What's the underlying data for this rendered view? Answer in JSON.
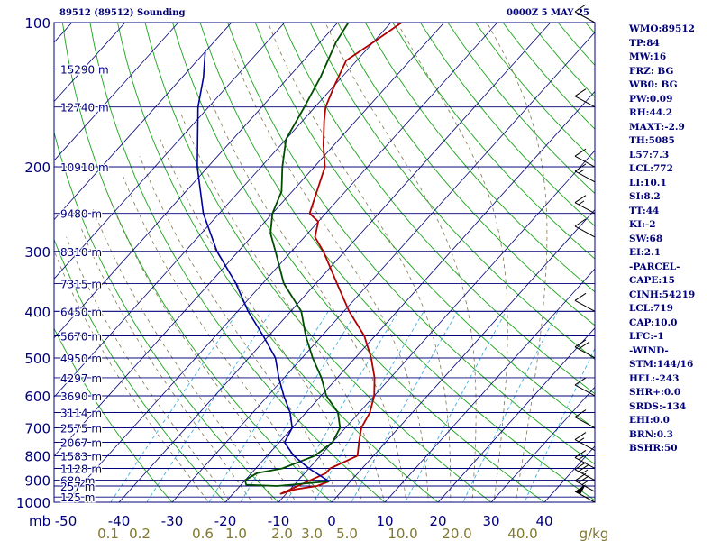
{
  "header": {
    "station": "89512 (89512) Sounding",
    "time": "0000Z  5 MAY 25"
  },
  "indices": [
    "WMO:89512",
    "TP:84",
    "MW:16",
    "FRZ: BG",
    "WB0: BG",
    "PW:0.09",
    "RH:44.2",
    "MAXT:-2.9",
    "TH:5085",
    "L57:7.3",
    "LCL:772",
    "LI:10.1",
    "SI:8.2",
    "TT:44",
    "KI:-2",
    "SW:68",
    "EI:2.1",
    "-PARCEL-",
    "CAPE:15",
    "CINH:54219",
    "LCL:719",
    "CAP:10.0",
    "LFC:-1",
    "-WIND-",
    "STM:144/16",
    "HEL:-243",
    "SHR+:0.0",
    "SRDS:-134",
    "EHI:0.0",
    "BRN:0.3",
    "BSHR:50"
  ],
  "colors": {
    "isobar": "#00007a",
    "isotherm": "#00007a",
    "dry_adiabat": "#1aa51a",
    "moist_adiabat": "#807850",
    "mixing_ratio": "#40b0e0",
    "temperature": "#b00000",
    "dewpoint": "#004d00",
    "parcel": "#00009e",
    "wind_barb": "#000000",
    "label": "#00007a",
    "bottom_label": "#807830"
  },
  "chart_data": {
    "type": "line",
    "title": "89512 (89512) Sounding",
    "subtitle": "0000Z  5 MAY 25",
    "xlabel": "",
    "ylabel": "mb",
    "pressure_levels": [
      100,
      200,
      300,
      400,
      500,
      600,
      700,
      800,
      900,
      1000
    ],
    "pressure_axis_unit": "mb",
    "temperature_ticks": [
      -50,
      -40,
      -30,
      -20,
      -10,
      0,
      10,
      20,
      30,
      40
    ],
    "mixing_ratio_ticks": [
      "0.1",
      "0.2",
      "0.6",
      "1.0",
      "2.0",
      "3.0",
      "5.0",
      "10.0",
      "20.0",
      "40.0"
    ],
    "mixing_ratio_unit": "g/kg",
    "height_labels": [
      {
        "p": 125,
        "label": "15290 m"
      },
      {
        "p": 150,
        "label": "12740 m"
      },
      {
        "p": 200,
        "label": "10910 m"
      },
      {
        "p": 250,
        "label": "9480 m"
      },
      {
        "p": 300,
        "label": "8310 m"
      },
      {
        "p": 350,
        "label": "7315 m"
      },
      {
        "p": 400,
        "label": "6450 m"
      },
      {
        "p": 450,
        "label": "5670 m"
      },
      {
        "p": 500,
        "label": "4950 m"
      },
      {
        "p": 550,
        "label": "4297 m"
      },
      {
        "p": 600,
        "label": "3690 m"
      },
      {
        "p": 650,
        "label": "3114 m"
      },
      {
        "p": 700,
        "label": "2575 m"
      },
      {
        "p": 750,
        "label": "2067 m"
      },
      {
        "p": 800,
        "label": "1583 m"
      },
      {
        "p": 850,
        "label": "1128 m"
      },
      {
        "p": 900,
        "label": "689 m"
      },
      {
        "p": 925,
        "label": "257 m"
      },
      {
        "p": 975,
        "label": "125 m"
      }
    ],
    "series": [
      {
        "key": "temperature",
        "points": [
          [
            905,
            -4
          ],
          [
            925,
            -5.5
          ],
          [
            940,
            -9
          ],
          [
            960,
            -11
          ],
          [
            870,
            -6
          ],
          [
            850,
            -6
          ],
          [
            800,
            -3
          ],
          [
            750,
            -5
          ],
          [
            700,
            -7
          ],
          [
            650,
            -8
          ],
          [
            600,
            -10
          ],
          [
            550,
            -13
          ],
          [
            500,
            -17
          ],
          [
            450,
            -22
          ],
          [
            400,
            -29
          ],
          [
            350,
            -36
          ],
          [
            300,
            -44
          ],
          [
            280,
            -48
          ],
          [
            260,
            -50
          ],
          [
            250,
            -53
          ],
          [
            200,
            -58
          ],
          [
            180,
            -62
          ],
          [
            160,
            -66
          ],
          [
            150,
            -68
          ],
          [
            135,
            -70
          ],
          [
            120,
            -72
          ],
          [
            110,
            -70
          ],
          [
            100,
            -68
          ]
        ]
      },
      {
        "key": "dewpoint",
        "points": [
          [
            905,
            -4
          ],
          [
            925,
            -13
          ],
          [
            920,
            -19
          ],
          [
            900,
            -20
          ],
          [
            870,
            -19
          ],
          [
            850,
            -15
          ],
          [
            800,
            -11
          ],
          [
            750,
            -10
          ],
          [
            700,
            -11
          ],
          [
            650,
            -14
          ],
          [
            600,
            -19
          ],
          [
            550,
            -23
          ],
          [
            500,
            -28
          ],
          [
            450,
            -33
          ],
          [
            400,
            -38
          ],
          [
            350,
            -46
          ],
          [
            300,
            -53
          ],
          [
            275,
            -57
          ],
          [
            250,
            -60
          ],
          [
            225,
            -62
          ],
          [
            200,
            -66
          ],
          [
            175,
            -70
          ],
          [
            150,
            -72
          ],
          [
            130,
            -74
          ],
          [
            110,
            -77
          ],
          [
            100,
            -78
          ]
        ]
      },
      {
        "key": "parcel",
        "points": [
          [
            905,
            -4
          ],
          [
            850,
            -10
          ],
          [
            800,
            -15
          ],
          [
            750,
            -19
          ],
          [
            700,
            -20
          ],
          [
            650,
            -23
          ],
          [
            600,
            -27
          ],
          [
            550,
            -31
          ],
          [
            500,
            -35
          ],
          [
            450,
            -41
          ],
          [
            400,
            -48
          ],
          [
            350,
            -55
          ],
          [
            300,
            -64
          ],
          [
            250,
            -73
          ],
          [
            200,
            -82
          ],
          [
            150,
            -92
          ],
          [
            130,
            -96
          ],
          [
            115,
            -100
          ]
        ]
      }
    ],
    "wind_barbs": [
      {
        "p": 100,
        "speed": 10
      },
      {
        "p": 150,
        "speed": 10
      },
      {
        "p": 200,
        "speed": 10
      },
      {
        "p": 215,
        "speed": 15
      },
      {
        "p": 250,
        "speed": 15
      },
      {
        "p": 280,
        "speed": 10
      },
      {
        "p": 400,
        "speed": 10
      },
      {
        "p": 500,
        "speed": 20
      },
      {
        "p": 600,
        "speed": 10
      },
      {
        "p": 700,
        "speed": 10
      },
      {
        "p": 780,
        "speed": 15
      },
      {
        "p": 850,
        "speed": 15
      },
      {
        "p": 900,
        "speed": 25
      },
      {
        "p": 950,
        "speed": 25
      },
      {
        "p": 1000,
        "speed": 50
      }
    ],
    "grid": true
  }
}
